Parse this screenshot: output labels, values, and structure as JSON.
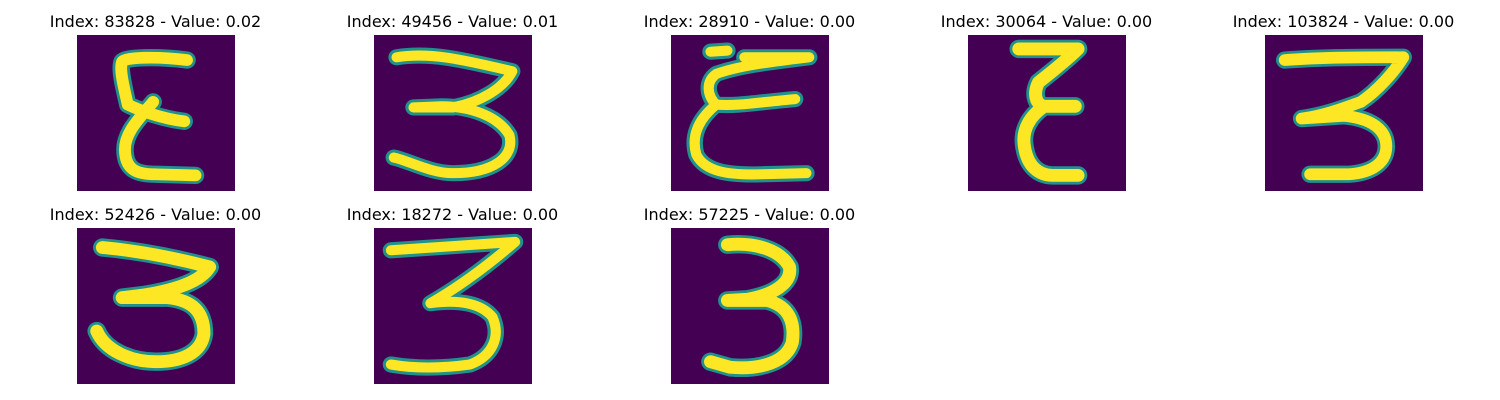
{
  "colors": {
    "background": "#440154",
    "stroke": "#fde725",
    "edge": "#21918c"
  },
  "chart_data": [
    {
      "type": "image",
      "title": "Index: 83828 - Value: 0.02",
      "index": 83828,
      "value": 0.02,
      "digit_shape": "epsilon"
    },
    {
      "type": "image",
      "title": "Index: 49456 - Value: 0.01",
      "index": 49456,
      "value": 0.01,
      "digit_shape": "three"
    },
    {
      "type": "image",
      "title": "Index: 28910 - Value: 0.00",
      "index": 28910,
      "value": 0.0,
      "digit_shape": "epsilon"
    },
    {
      "type": "image",
      "title": "Index: 30064 - Value: 0.00",
      "index": 30064,
      "value": 0.0,
      "digit_shape": "epsilon"
    },
    {
      "type": "image",
      "title": "Index: 103824 - Value: 0.00",
      "index": 103824,
      "value": 0.0,
      "digit_shape": "three"
    },
    {
      "type": "image",
      "title": "Index: 52426 - Value: 0.00",
      "index": 52426,
      "value": 0.0,
      "digit_shape": "three"
    },
    {
      "type": "image",
      "title": "Index: 18272 - Value: 0.00",
      "index": 18272,
      "value": 0.0,
      "digit_shape": "three"
    },
    {
      "type": "image",
      "title": "Index: 57225 - Value: 0.00",
      "index": 57225,
      "value": 0.0,
      "digit_shape": "three"
    }
  ]
}
